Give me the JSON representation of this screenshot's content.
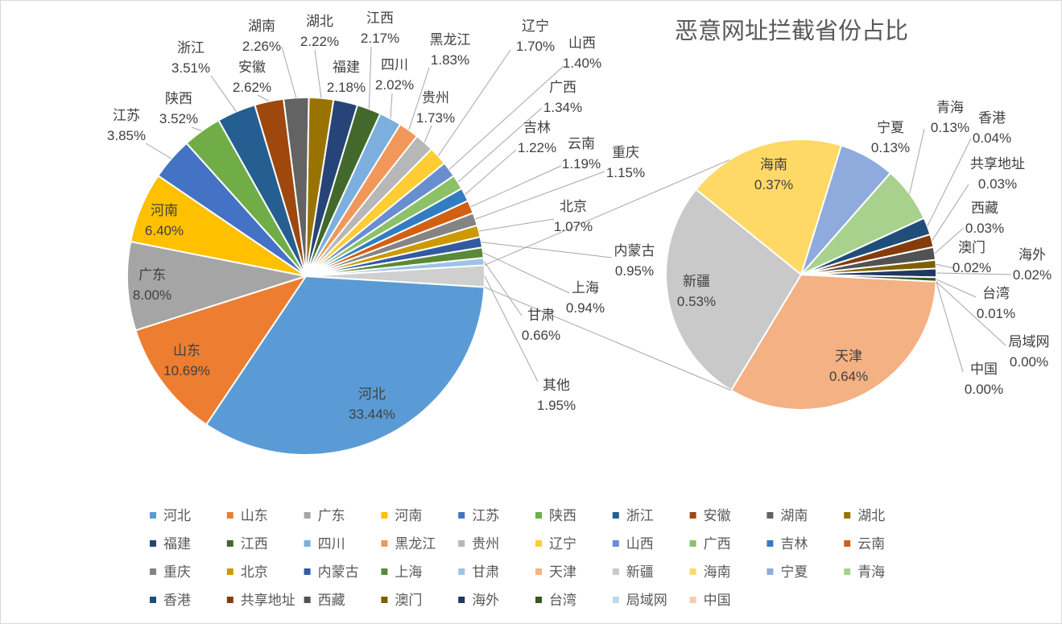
{
  "chart_data": {
    "type": "pie",
    "variant": "pie-of-pie",
    "title": "恶意网址拦截省份占比",
    "legend_position": "bottom",
    "main": [
      {
        "name": "河北",
        "value": 33.44,
        "label": "33.44%",
        "color": "#5B9BD5"
      },
      {
        "name": "山东",
        "value": 10.69,
        "label": "10.69%",
        "color": "#ED7D31"
      },
      {
        "name": "广东",
        "value": 8.0,
        "label": "8.00%",
        "color": "#A5A5A5"
      },
      {
        "name": "河南",
        "value": 6.4,
        "label": "6.40%",
        "color": "#FFC000"
      },
      {
        "name": "江苏",
        "value": 3.85,
        "label": "3.85%",
        "color": "#4472C4"
      },
      {
        "name": "陕西",
        "value": 3.52,
        "label": "3.52%",
        "color": "#70AD47"
      },
      {
        "name": "浙江",
        "value": 3.51,
        "label": "3.51%",
        "color": "#255E91"
      },
      {
        "name": "安徽",
        "value": 2.62,
        "label": "2.62%",
        "color": "#9E480E"
      },
      {
        "name": "湖南",
        "value": 2.26,
        "label": "2.26%",
        "color": "#636363"
      },
      {
        "name": "湖北",
        "value": 2.22,
        "label": "2.22%",
        "color": "#997300"
      },
      {
        "name": "福建",
        "value": 2.18,
        "label": "2.18%",
        "color": "#264478"
      },
      {
        "name": "江西",
        "value": 2.17,
        "label": "2.17%",
        "color": "#43682B"
      },
      {
        "name": "四川",
        "value": 2.02,
        "label": "2.02%",
        "color": "#7CAFDD"
      },
      {
        "name": "黑龙江",
        "value": 1.83,
        "label": "1.83%",
        "color": "#F1975A"
      },
      {
        "name": "贵州",
        "value": 1.73,
        "label": "1.73%",
        "color": "#B7B7B7"
      },
      {
        "name": "辽宁",
        "value": 1.7,
        "label": "1.70%",
        "color": "#FFCD33"
      },
      {
        "name": "山西",
        "value": 1.4,
        "label": "1.40%",
        "color": "#698ED0"
      },
      {
        "name": "广西",
        "value": 1.34,
        "label": "1.34%",
        "color": "#8CC168"
      },
      {
        "name": "吉林",
        "value": 1.22,
        "label": "1.22%",
        "color": "#327DC2"
      },
      {
        "name": "云南",
        "value": 1.19,
        "label": "1.19%",
        "color": "#D26012"
      },
      {
        "name": "重庆",
        "value": 1.15,
        "label": "1.15%",
        "color": "#848484"
      },
      {
        "name": "北京",
        "value": 1.07,
        "label": "1.07%",
        "color": "#CC9A00"
      },
      {
        "name": "内蒙古",
        "value": 0.95,
        "label": "0.95%",
        "color": "#335AA1"
      },
      {
        "name": "上海",
        "value": 0.94,
        "label": "0.94%",
        "color": "#5A8A39"
      },
      {
        "name": "甘肃",
        "value": 0.66,
        "label": "0.66%",
        "color": "#9DC3E6"
      }
    ],
    "other": {
      "name": "其他",
      "value": 1.95,
      "label": "1.95%",
      "color": "#CFCFCF"
    },
    "secondary": [
      {
        "name": "天津",
        "value": 0.64,
        "label": "0.64%",
        "color": "#F4B183"
      },
      {
        "name": "新疆",
        "value": 0.53,
        "label": "0.53%",
        "color": "#C9C9C9"
      },
      {
        "name": "海南",
        "value": 0.37,
        "label": "0.37%",
        "color": "#FFD966"
      },
      {
        "name": "宁夏",
        "value": 0.13,
        "label": "0.13%",
        "color": "#8FAADC"
      },
      {
        "name": "青海",
        "value": 0.13,
        "label": "0.13%",
        "color": "#A9D18E"
      },
      {
        "name": "香港",
        "value": 0.04,
        "label": "0.04%",
        "color": "#1F4E79"
      },
      {
        "name": "共享地址",
        "value": 0.03,
        "label": "0.03%",
        "color": "#843C0C"
      },
      {
        "name": "西藏",
        "value": 0.03,
        "label": "0.03%",
        "color": "#525252"
      },
      {
        "name": "澳门",
        "value": 0.02,
        "label": "0.02%",
        "color": "#7F6000"
      },
      {
        "name": "海外",
        "value": 0.02,
        "label": "0.02%",
        "color": "#203864"
      },
      {
        "name": "台湾",
        "value": 0.01,
        "label": "0.01%",
        "color": "#385723"
      },
      {
        "name": "局域网",
        "value": 0.0,
        "label": "0.00%",
        "color": "#BDD7EE"
      },
      {
        "name": "中国",
        "value": 0.0,
        "label": "0.00%",
        "color": "#F8CBAD"
      }
    ]
  }
}
